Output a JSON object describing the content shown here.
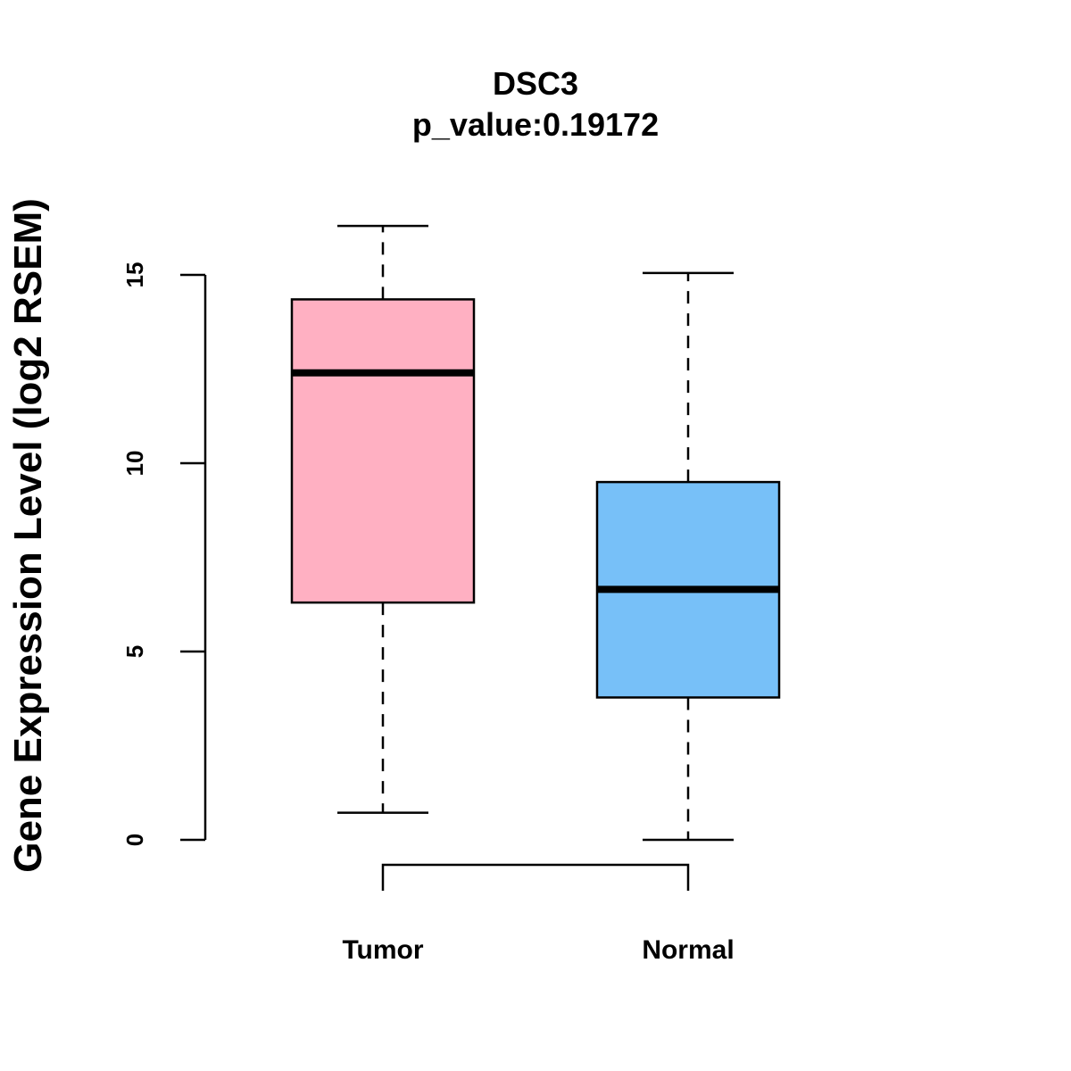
{
  "chart_data": {
    "type": "boxplot",
    "title": "DSC3",
    "subtitle": "p_value:0.19172",
    "ylabel": "Gene Expression Level (log2 RSEM)",
    "xlabel": "",
    "ylim": [
      0,
      15
    ],
    "yticks": [
      0,
      5,
      10,
      15
    ],
    "grid": false,
    "categories": [
      "Tumor",
      "Normal"
    ],
    "boxes": [
      {
        "category": "Tumor",
        "color": "#FFB0C2",
        "min": 0.72,
        "q1": 6.3,
        "median": 12.4,
        "q3": 14.35,
        "max": 16.3
      },
      {
        "category": "Normal",
        "color": "#77C0F8",
        "min": 0.0,
        "q1": 3.78,
        "median": 6.65,
        "q3": 9.5,
        "max": 15.05
      }
    ],
    "comparison_bracket": [
      "Tumor",
      "Normal"
    ]
  }
}
